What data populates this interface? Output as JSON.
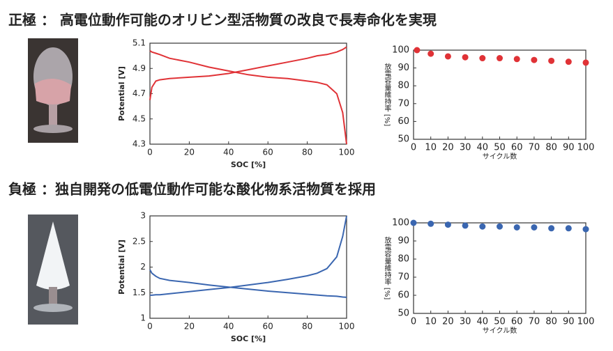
{
  "headings": [
    "正極 ： 高電位動作可能のオリビン型活物質の改良で長寿命化を実現",
    "負極 ：独自開発の低電位動作可能な酸化物系活物質を採用"
  ],
  "chart_data": [
    {
      "type": "line",
      "xlabel": "SOC [%]",
      "ylabel": "Potential [V]",
      "x": [
        0,
        1,
        3,
        5,
        10,
        20,
        30,
        40,
        50,
        60,
        70,
        80,
        85,
        90,
        95,
        98,
        100
      ],
      "series": [
        {
          "color": "#e03236",
          "values": [
            4.65,
            4.75,
            4.8,
            4.81,
            4.82,
            4.83,
            4.84,
            4.86,
            4.89,
            4.92,
            4.95,
            4.98,
            5.0,
            5.01,
            5.03,
            5.05,
            5.07
          ]
        },
        {
          "color": "#e03236",
          "values": [
            5.04,
            5.03,
            5.02,
            5.01,
            4.98,
            4.95,
            4.91,
            4.88,
            4.85,
            4.83,
            4.82,
            4.8,
            4.79,
            4.77,
            4.7,
            4.55,
            4.3
          ]
        }
      ],
      "xlim": [
        0,
        100
      ],
      "xticks": [
        0,
        20,
        40,
        60,
        80,
        100
      ],
      "ylim": [
        4.3,
        5.1
      ],
      "yticks": [
        4.3,
        4.5,
        4.7,
        4.9,
        5.1
      ]
    },
    {
      "type": "scatter",
      "xlabel": "サイクル数",
      "ylabel": "放電容量維持率 [%]",
      "color": "#e03236",
      "x": [
        2,
        10,
        20,
        30,
        40,
        50,
        60,
        70,
        80,
        90,
        100
      ],
      "values": [
        100,
        98,
        96.5,
        96,
        95.5,
        95.5,
        95,
        94.5,
        94,
        93.5,
        93
      ],
      "xlim": [
        0,
        100
      ],
      "xticks": [
        0,
        10,
        20,
        30,
        40,
        50,
        60,
        70,
        80,
        90,
        100
      ],
      "ylim": [
        50,
        100
      ],
      "yticks": [
        50,
        60,
        70,
        80,
        90,
        100
      ]
    },
    {
      "type": "line",
      "xlabel": "SOC [%]",
      "ylabel": "Potential [V]",
      "x": [
        0,
        1,
        3,
        5,
        10,
        20,
        30,
        40,
        50,
        60,
        70,
        80,
        85,
        90,
        95,
        98,
        100
      ],
      "series": [
        {
          "color": "#3a66b0",
          "values": [
            1.45,
            1.45,
            1.46,
            1.46,
            1.48,
            1.52,
            1.56,
            1.6,
            1.65,
            1.7,
            1.76,
            1.83,
            1.88,
            1.97,
            2.2,
            2.6,
            3.0
          ]
        },
        {
          "color": "#3a66b0",
          "values": [
            1.95,
            1.88,
            1.82,
            1.78,
            1.74,
            1.7,
            1.65,
            1.61,
            1.57,
            1.53,
            1.5,
            1.47,
            1.455,
            1.44,
            1.43,
            1.415,
            1.41
          ]
        }
      ],
      "xlim": [
        0,
        100
      ],
      "xticks": [
        0,
        20,
        40,
        60,
        80,
        100
      ],
      "ylim": [
        1,
        3
      ],
      "yticks": [
        1,
        1.5,
        2,
        2.5,
        3
      ]
    },
    {
      "type": "scatter",
      "xlabel": "サイクル数",
      "ylabel": "放電容量維持率 [%]",
      "color": "#3a66b0",
      "x": [
        0,
        10,
        20,
        30,
        40,
        50,
        60,
        70,
        80,
        90,
        100
      ],
      "values": [
        100,
        99.5,
        99,
        98.5,
        98,
        98,
        97.5,
        97.5,
        97,
        97,
        96.5
      ],
      "xlim": [
        0,
        100
      ],
      "xticks": [
        0,
        10,
        20,
        30,
        40,
        50,
        60,
        70,
        80,
        90,
        100
      ],
      "ylim": [
        50,
        100
      ],
      "yticks": [
        50,
        60,
        70,
        80,
        90,
        100
      ]
    }
  ]
}
